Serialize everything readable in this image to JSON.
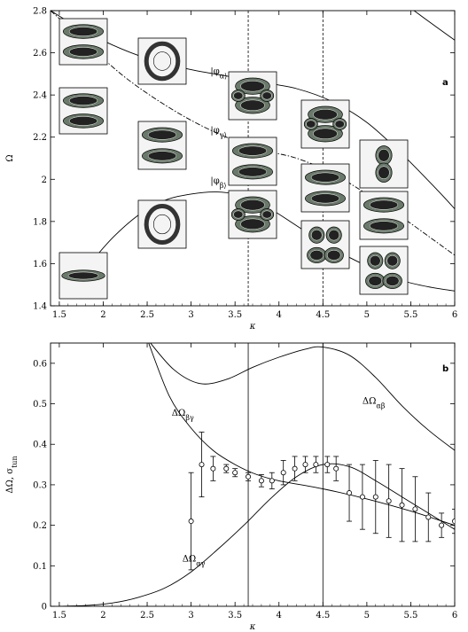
{
  "chart_data": [
    {
      "panel_label": "a",
      "type": "line",
      "xlabel": "κ",
      "ylabel": "Ω",
      "xlim": [
        1.4,
        6.0
      ],
      "ylim": [
        1.4,
        2.8
      ],
      "xticks": [
        "1.5",
        "2",
        "2.5",
        "3",
        "3.5",
        "4",
        "4.5",
        "5",
        "5.5",
        "6"
      ],
      "yticks": [
        "1.4",
        "1.6",
        "1.8",
        "2",
        "2.2",
        "2.4",
        "2.6",
        "2.8"
      ],
      "vlines": [
        3.65,
        4.5
      ],
      "series": [
        {
          "name": "|φ_α⟩",
          "style": "solid",
          "x": [
            1.4,
            1.8,
            2.2,
            2.6,
            3.0,
            3.4,
            3.8,
            4.2,
            4.6,
            5.0,
            5.4,
            5.8,
            6.0
          ],
          "y": [
            2.8,
            2.7,
            2.62,
            2.56,
            2.52,
            2.49,
            2.46,
            2.43,
            2.37,
            2.27,
            2.12,
            1.95,
            1.86
          ]
        },
        {
          "name": "|φ_γ⟩",
          "style": "dashdot",
          "x": [
            1.4,
            1.8,
            2.2,
            2.6,
            3.0,
            3.4,
            3.8,
            4.2,
            4.6,
            5.0,
            5.4,
            5.8,
            6.0
          ],
          "y": [
            2.8,
            2.65,
            2.5,
            2.38,
            2.28,
            2.2,
            2.14,
            2.1,
            2.03,
            1.93,
            1.82,
            1.7,
            1.64
          ]
        },
        {
          "name": "|φ_β⟩",
          "style": "solid",
          "x": [
            1.5,
            1.8,
            2.1,
            2.4,
            2.7,
            3.0,
            3.3,
            3.6,
            3.9,
            4.2,
            4.5,
            4.8,
            5.1,
            5.4,
            5.7,
            6.0
          ],
          "y": [
            1.46,
            1.58,
            1.72,
            1.83,
            1.9,
            1.93,
            1.94,
            1.92,
            1.86,
            1.78,
            1.7,
            1.63,
            1.57,
            1.52,
            1.49,
            1.47
          ]
        },
        {
          "name": "",
          "style": "solid",
          "x": [
            5.1,
            5.4,
            5.7,
            6.0
          ],
          "y": [
            2.91,
            2.84,
            2.75,
            2.66
          ]
        }
      ],
      "annotations": [
        {
          "text": "|φ_α⟩",
          "x": 3.22,
          "y": 2.5
        },
        {
          "text": "|φ_γ⟩",
          "x": 3.22,
          "y": 2.22
        },
        {
          "text": "|φ_β⟩",
          "x": 3.22,
          "y": 1.98
        }
      ]
    },
    {
      "panel_label": "b",
      "type": "line",
      "xlabel": "κ",
      "ylabel": "ΔΩ, σ_tun",
      "xlim": [
        1.4,
        6.0
      ],
      "ylim": [
        0,
        0.65
      ],
      "xticks": [
        "1.5",
        "2",
        "2.5",
        "3",
        "3.5",
        "4",
        "4.5",
        "5",
        "5.5",
        "6"
      ],
      "yticks": [
        "0",
        "0.1",
        "0.2",
        "0.3",
        "0.4",
        "0.5",
        "0.6"
      ],
      "vlines": [
        3.65,
        4.5
      ],
      "series": [
        {
          "name": "ΔΩ_αβ",
          "x": [
            2.5,
            2.8,
            3.1,
            3.4,
            3.7,
            4.0,
            4.3,
            4.5,
            4.8,
            5.1,
            5.4,
            5.7,
            6.0
          ],
          "y": [
            0.66,
            0.585,
            0.55,
            0.56,
            0.59,
            0.615,
            0.635,
            0.64,
            0.62,
            0.565,
            0.495,
            0.435,
            0.385
          ]
        },
        {
          "name": "ΔΩ_βγ",
          "x": [
            2.5,
            2.75,
            3.0,
            3.25,
            3.5,
            3.75,
            4.0,
            4.5,
            5.0,
            5.5,
            6.0
          ],
          "y": [
            0.66,
            0.52,
            0.44,
            0.385,
            0.35,
            0.325,
            0.31,
            0.29,
            0.265,
            0.235,
            0.2
          ]
        },
        {
          "name": "ΔΩ_αγ",
          "x": [
            1.5,
            1.8,
            2.1,
            2.4,
            2.7,
            3.0,
            3.3,
            3.6,
            3.9,
            4.2,
            4.5,
            4.8,
            5.1,
            5.4,
            5.7,
            6.0
          ],
          "y": [
            0.0,
            0.002,
            0.008,
            0.022,
            0.045,
            0.085,
            0.14,
            0.2,
            0.265,
            0.32,
            0.35,
            0.345,
            0.31,
            0.27,
            0.23,
            0.19
          ]
        }
      ],
      "error_points": [
        {
          "x": 3.0,
          "y": 0.21,
          "err": 0.12
        },
        {
          "x": 3.12,
          "y": 0.35,
          "err": 0.08
        },
        {
          "x": 3.25,
          "y": 0.34,
          "err": 0.03
        },
        {
          "x": 3.4,
          "y": 0.34,
          "err": 0.01
        },
        {
          "x": 3.5,
          "y": 0.33,
          "err": 0.01
        },
        {
          "x": 3.65,
          "y": 0.32,
          "err": 0.01
        },
        {
          "x": 3.8,
          "y": 0.31,
          "err": 0.015
        },
        {
          "x": 3.92,
          "y": 0.31,
          "err": 0.02
        },
        {
          "x": 4.05,
          "y": 0.33,
          "err": 0.03
        },
        {
          "x": 4.18,
          "y": 0.34,
          "err": 0.03
        },
        {
          "x": 4.3,
          "y": 0.35,
          "err": 0.02
        },
        {
          "x": 4.42,
          "y": 0.35,
          "err": 0.02
        },
        {
          "x": 4.55,
          "y": 0.35,
          "err": 0.02
        },
        {
          "x": 4.65,
          "y": 0.34,
          "err": 0.03
        },
        {
          "x": 4.8,
          "y": 0.28,
          "err": 0.07
        },
        {
          "x": 4.95,
          "y": 0.27,
          "err": 0.08
        },
        {
          "x": 5.1,
          "y": 0.27,
          "err": 0.09
        },
        {
          "x": 5.25,
          "y": 0.26,
          "err": 0.09
        },
        {
          "x": 5.4,
          "y": 0.25,
          "err": 0.09
        },
        {
          "x": 5.55,
          "y": 0.24,
          "err": 0.08
        },
        {
          "x": 5.7,
          "y": 0.22,
          "err": 0.06
        },
        {
          "x": 5.85,
          "y": 0.2,
          "err": 0.03
        },
        {
          "x": 6.0,
          "y": 0.21,
          "err": 0.03
        }
      ],
      "annotations": [
        {
          "text": "ΔΩ_αβ",
          "x": 4.95,
          "y": 0.5
        },
        {
          "text": "ΔΩ_βγ",
          "x": 2.78,
          "y": 0.47
        },
        {
          "text": "ΔΩ_αγ",
          "x": 2.9,
          "y": 0.11
        }
      ]
    }
  ]
}
